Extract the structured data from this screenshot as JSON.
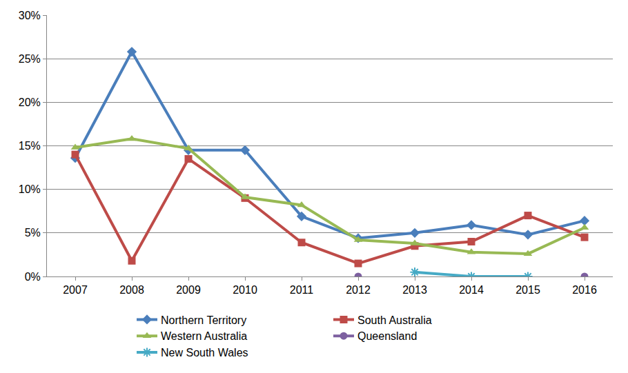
{
  "chart_data": {
    "type": "line",
    "categories": [
      "2007",
      "2008",
      "2009",
      "2010",
      "2011",
      "2012",
      "2013",
      "2014",
      "2015",
      "2016"
    ],
    "series": [
      {
        "name": "Northern Territory",
        "color": "#4a7ebb",
        "marker": "diamond",
        "values": [
          13.6,
          25.8,
          14.5,
          14.5,
          6.9,
          4.4,
          5.0,
          5.9,
          4.8,
          6.4
        ]
      },
      {
        "name": "South Australia",
        "color": "#be4b48",
        "marker": "square",
        "values": [
          14.0,
          1.8,
          13.5,
          9.0,
          3.9,
          1.5,
          3.5,
          4.0,
          7.0,
          4.5
        ]
      },
      {
        "name": "Western Australia",
        "color": "#98b954",
        "marker": "triangle-up",
        "values": [
          14.8,
          15.8,
          14.7,
          9.1,
          8.2,
          4.2,
          3.8,
          2.8,
          2.6,
          5.6
        ]
      },
      {
        "name": "Queensland",
        "color": "#7d60a0",
        "marker": "circle",
        "values": [
          null,
          null,
          null,
          null,
          null,
          0,
          null,
          null,
          null,
          0
        ]
      },
      {
        "name": "New South Wales",
        "color": "#46aac5",
        "marker": "asterisk",
        "values": [
          null,
          null,
          null,
          null,
          null,
          null,
          0.5,
          0,
          0,
          null
        ]
      }
    ],
    "ylim": [
      0,
      30
    ],
    "yticks": [
      {
        "value": 0,
        "label": "0%"
      },
      {
        "value": 5,
        "label": "5%"
      },
      {
        "value": 10,
        "label": "10%"
      },
      {
        "value": 15,
        "label": "15%"
      },
      {
        "value": 20,
        "label": "20%"
      },
      {
        "value": 25,
        "label": "25%"
      },
      {
        "value": 30,
        "label": "30%"
      }
    ],
    "grid": true,
    "legend": "bottom"
  }
}
